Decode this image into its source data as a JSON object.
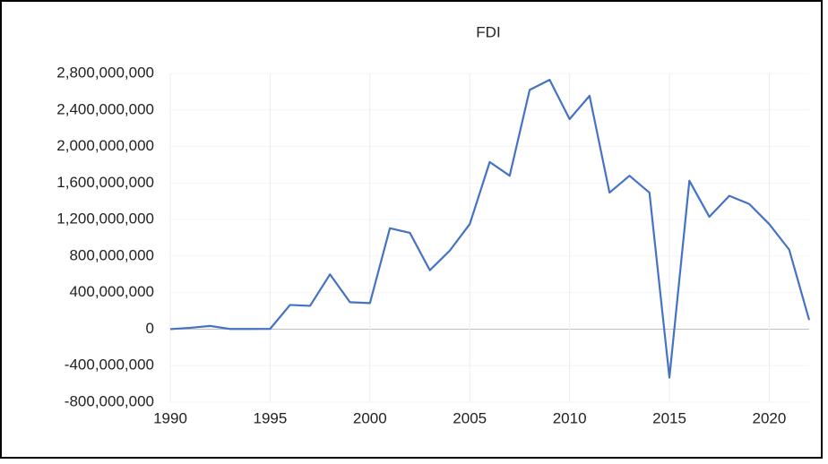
{
  "chart_data": {
    "type": "line",
    "title": "FDI",
    "x": [
      1990,
      1991,
      1992,
      1993,
      1994,
      1995,
      1996,
      1997,
      1998,
      1999,
      2000,
      2001,
      2002,
      2003,
      2004,
      2005,
      2006,
      2007,
      2008,
      2009,
      2010,
      2011,
      2012,
      2013,
      2014,
      2015,
      2016,
      2017,
      2018,
      2019,
      2020,
      2021,
      2022
    ],
    "series": [
      {
        "name": "FDI",
        "color": "#4472c4",
        "values": [
          0,
          15000000,
          35000000,
          2000000,
          2000000,
          3000000,
          265000000,
          255000000,
          600000000,
          295000000,
          285000000,
          1105000000,
          1055000000,
          645000000,
          860000000,
          1150000000,
          1830000000,
          1680000000,
          2620000000,
          2730000000,
          2300000000,
          2555000000,
          1495000000,
          1680000000,
          1495000000,
          -530000000,
          1625000000,
          1230000000,
          1460000000,
          1370000000,
          1150000000,
          870000000,
          100000000
        ]
      }
    ],
    "xlim": [
      1990,
      2022
    ],
    "xticks": [
      1990,
      1995,
      2000,
      2005,
      2010,
      2015,
      2020
    ],
    "ylim": [
      -800000000,
      2800000000
    ],
    "yticks": [
      {
        "value": -800000000,
        "label": "-800,000,000"
      },
      {
        "value": -400000000,
        "label": "-400,000,000"
      },
      0,
      {
        "value": 400000000,
        "label": "400,000,000"
      },
      {
        "value": 800000000,
        "label": "800,000,000"
      },
      {
        "value": 1200000000,
        "label": "1,200,000,000"
      },
      {
        "value": 1600000000,
        "label": "1,600,000,000"
      },
      {
        "value": 2000000000,
        "label": "2,000,000,000"
      },
      {
        "value": 2400000000,
        "label": "2,400,000,000"
      },
      {
        "value": 2800000000,
        "label": "2,800,000,000"
      }
    ],
    "grid": true
  }
}
